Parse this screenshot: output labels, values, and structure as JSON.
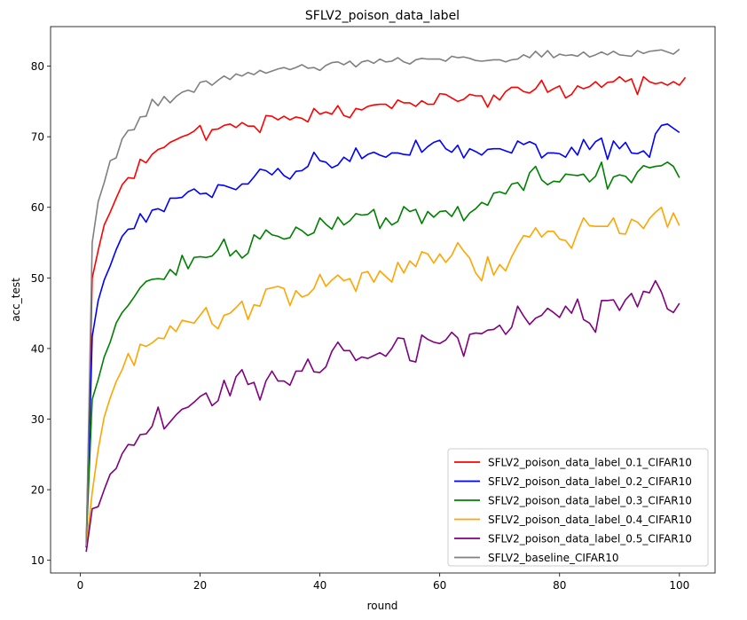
{
  "chart_data": {
    "type": "line",
    "title": "SFLV2_poison_data_label",
    "xlabel": "round",
    "ylabel": "acc_test",
    "xlim": [
      -4.95,
      105.95
    ],
    "ylim": [
      8.2,
      85.6
    ],
    "xticks": [
      0,
      20,
      40,
      60,
      80,
      100
    ],
    "yticks": [
      10,
      20,
      30,
      40,
      50,
      60,
      70,
      80
    ],
    "grid": false,
    "legend_position": "lower-right",
    "series": [
      {
        "name": "SFLV2_poison_data_label_0.1_CIFAR10",
        "color": "#ff0000",
        "values": [
          11.8,
          50.0,
          53.9,
          57.5,
          59.3,
          61.3,
          63.2,
          64.2,
          64.1,
          66.8,
          66.3,
          67.5,
          68.2,
          68.5,
          69.2,
          69.6,
          70.0,
          70.3,
          70.8,
          71.6,
          69.5,
          71.0,
          71.1,
          71.6,
          71.8,
          71.3,
          72.0,
          71.5,
          71.5,
          70.6,
          73.0,
          72.9,
          72.4,
          72.9,
          72.4,
          72.8,
          72.6,
          72.1,
          74.0,
          73.2,
          73.5,
          73.2,
          74.4,
          73.0,
          72.7,
          74.0,
          73.8,
          74.3,
          74.5,
          74.6,
          74.6,
          74.0,
          75.2,
          74.8,
          74.8,
          74.3,
          75.1,
          74.6,
          74.6,
          76.1,
          76.0,
          75.5,
          75.0,
          75.3,
          76.0,
          75.8,
          75.8,
          74.2,
          75.9,
          75.2,
          76.4,
          77.0,
          77.0,
          76.4,
          76.2,
          76.8,
          78.0,
          76.3,
          76.8,
          77.2,
          75.5,
          76.0,
          77.2,
          76.8,
          77.1,
          77.8,
          77.0,
          77.7,
          77.8,
          78.5,
          77.8,
          78.2,
          76.0,
          78.5,
          77.8,
          77.5,
          77.7,
          77.3,
          77.8,
          77.3,
          78.4
        ]
      },
      {
        "name": "SFLV2_poison_data_label_0.2_CIFAR10",
        "color": "#0000ff",
        "values": [
          11.9,
          41.7,
          46.8,
          49.7,
          51.7,
          54.0,
          55.9,
          56.9,
          57.0,
          59.1,
          57.9,
          59.6,
          59.8,
          59.4,
          61.3,
          61.3,
          61.4,
          62.2,
          62.6,
          61.9,
          62.0,
          61.4,
          63.2,
          63.1,
          62.8,
          62.5,
          63.3,
          63.3,
          64.3,
          65.4,
          65.2,
          64.6,
          65.5,
          64.5,
          64.0,
          65.1,
          65.2,
          65.8,
          67.8,
          66.6,
          66.4,
          65.6,
          66.0,
          67.1,
          66.5,
          68.4,
          66.9,
          67.5,
          67.8,
          67.4,
          67.1,
          67.7,
          67.7,
          67.5,
          67.4,
          69.5,
          67.8,
          68.6,
          69.2,
          69.5,
          68.3,
          67.8,
          68.8,
          67.0,
          68.3,
          67.9,
          67.4,
          68.2,
          68.3,
          68.3,
          68.0,
          67.7,
          69.4,
          68.9,
          69.3,
          68.9,
          67.0,
          67.7,
          67.7,
          67.6,
          67.1,
          68.5,
          67.4,
          69.6,
          68.2,
          69.3,
          69.8,
          66.8,
          69.4,
          68.3,
          69.2,
          67.7,
          67.6,
          68.0,
          67.1,
          70.4,
          71.6,
          71.8,
          71.2,
          70.6
        ]
      },
      {
        "name": "SFLV2_poison_data_label_0.3_CIFAR10",
        "color": "#008000",
        "values": [
          12.6,
          32.8,
          35.6,
          38.8,
          40.9,
          43.6,
          45.1,
          46.1,
          47.3,
          48.6,
          49.5,
          49.8,
          49.9,
          49.8,
          51.2,
          50.4,
          53.2,
          51.3,
          52.9,
          53.0,
          52.9,
          53.1,
          54.0,
          55.5,
          53.1,
          53.9,
          52.8,
          53.5,
          56.1,
          55.5,
          56.8,
          56.1,
          55.9,
          55.5,
          55.7,
          57.2,
          56.7,
          56.0,
          56.4,
          58.5,
          57.6,
          56.9,
          58.6,
          57.5,
          58.1,
          59.1,
          58.9,
          59.0,
          59.7,
          57.0,
          58.5,
          57.5,
          58.0,
          60.1,
          59.4,
          59.7,
          57.7,
          59.4,
          58.6,
          59.4,
          59.5,
          58.7,
          60.1,
          58.1,
          59.2,
          59.8,
          60.7,
          60.3,
          62.0,
          62.2,
          61.9,
          63.3,
          63.5,
          62.4,
          64.9,
          65.8,
          63.9,
          63.2,
          63.7,
          63.6,
          64.7,
          64.6,
          64.5,
          64.7,
          63.6,
          64.4,
          66.4,
          62.6,
          64.3,
          64.6,
          64.4,
          63.5,
          65.0,
          65.9,
          65.6,
          65.8,
          65.9,
          66.4,
          65.8,
          64.2
        ]
      },
      {
        "name": "SFLV2_poison_data_label_0.4_CIFAR10",
        "color": "#ffa500",
        "values": [
          12.0,
          19.6,
          25.7,
          30.3,
          33.0,
          35.3,
          37.0,
          39.3,
          37.6,
          40.6,
          40.3,
          40.8,
          41.5,
          41.4,
          43.2,
          42.4,
          44.0,
          43.8,
          43.6,
          44.7,
          45.8,
          43.5,
          42.8,
          44.7,
          45.0,
          45.8,
          46.7,
          44.1,
          46.2,
          46.0,
          48.4,
          48.6,
          48.8,
          48.5,
          46.1,
          48.2,
          47.3,
          47.6,
          48.5,
          50.5,
          48.8,
          49.7,
          50.4,
          49.6,
          49.9,
          48.1,
          50.7,
          50.9,
          49.4,
          51.0,
          50.2,
          49.4,
          52.2,
          50.7,
          52.4,
          51.6,
          53.7,
          53.4,
          52.1,
          53.4,
          52.2,
          53.2,
          55.0,
          53.8,
          52.8,
          50.7,
          49.6,
          53.0,
          50.4,
          51.9,
          51.0,
          53.0,
          54.6,
          56.0,
          55.8,
          57.1,
          55.8,
          56.6,
          56.6,
          55.5,
          55.3,
          54.2,
          56.5,
          58.5,
          57.4,
          57.3,
          57.3,
          57.3,
          58.5,
          56.3,
          56.2,
          58.3,
          57.9,
          57.0,
          58.4,
          59.3,
          60.0,
          57.2,
          59.2,
          57.4
        ]
      },
      {
        "name": "SFLV2_poison_data_label_0.5_CIFAR10",
        "color": "#800080",
        "values": [
          11.2,
          17.3,
          17.6,
          20.0,
          22.2,
          23.0,
          25.1,
          26.4,
          26.3,
          27.8,
          27.9,
          29.0,
          31.7,
          28.6,
          29.6,
          30.6,
          31.4,
          31.7,
          32.4,
          33.2,
          33.7,
          31.9,
          32.6,
          35.5,
          33.3,
          36.0,
          37.0,
          34.9,
          35.2,
          32.7,
          35.4,
          36.8,
          35.4,
          35.4,
          34.8,
          36.8,
          36.8,
          38.5,
          36.7,
          36.6,
          37.4,
          39.6,
          40.9,
          39.7,
          39.7,
          38.3,
          38.8,
          38.6,
          39.0,
          39.4,
          38.9,
          40.0,
          41.5,
          41.4,
          38.3,
          38.1,
          41.9,
          41.3,
          40.9,
          40.7,
          41.2,
          42.3,
          41.5,
          38.9,
          42.0,
          42.2,
          42.1,
          42.6,
          42.7,
          43.3,
          42.0,
          43.0,
          46.0,
          44.6,
          43.4,
          44.3,
          44.7,
          45.7,
          45.1,
          44.4,
          46.0,
          45.0,
          47.0,
          44.1,
          43.6,
          42.3,
          46.8,
          46.8,
          46.9,
          45.4,
          46.9,
          47.8,
          45.9,
          48.1,
          47.9,
          49.6,
          48.0,
          45.6,
          45.1,
          46.4
        ]
      },
      {
        "name": "SFLV2_baseline_CIFAR10",
        "color": "#808080",
        "values": [
          12.0,
          55.0,
          60.8,
          63.5,
          66.6,
          67.0,
          69.7,
          70.9,
          71.0,
          72.8,
          72.9,
          75.3,
          74.4,
          75.7,
          74.8,
          75.7,
          76.3,
          76.6,
          76.3,
          77.7,
          77.9,
          77.3,
          78.0,
          78.6,
          78.1,
          78.9,
          78.6,
          79.1,
          78.8,
          79.4,
          79.0,
          79.3,
          79.6,
          79.8,
          79.5,
          79.8,
          80.2,
          79.7,
          79.8,
          79.4,
          80.1,
          80.5,
          80.6,
          80.2,
          80.7,
          79.9,
          80.6,
          80.8,
          80.4,
          81.0,
          80.6,
          80.7,
          81.2,
          80.6,
          80.3,
          80.9,
          81.1,
          81.0,
          81.0,
          81.0,
          80.7,
          81.4,
          81.2,
          81.3,
          81.1,
          80.8,
          80.7,
          80.8,
          80.9,
          80.9,
          80.6,
          80.9,
          81.0,
          81.6,
          81.2,
          82.1,
          81.3,
          82.2,
          81.2,
          81.7,
          81.5,
          81.6,
          81.4,
          82.0,
          81.3,
          81.6,
          82.0,
          81.6,
          82.1,
          81.6,
          81.5,
          81.4,
          82.2,
          81.8,
          82.1,
          82.2,
          82.3,
          82.0,
          81.7,
          82.4
        ]
      }
    ]
  }
}
